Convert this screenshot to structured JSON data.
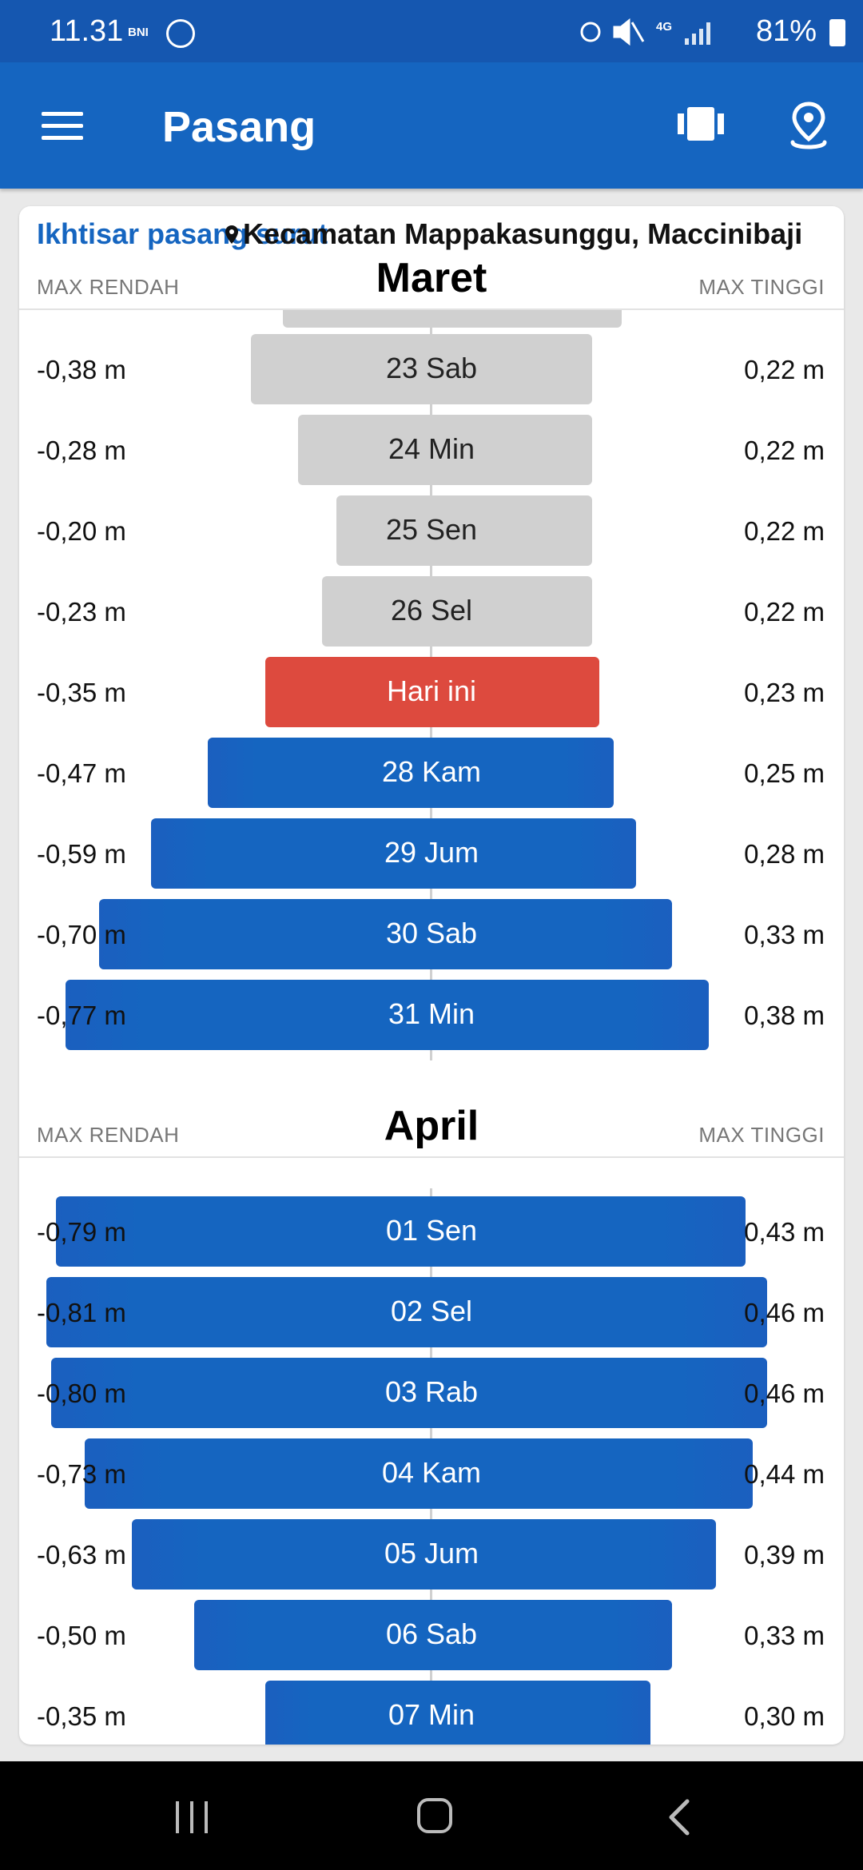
{
  "status_bar": {
    "time": "11.31",
    "carrier_badge": "BNI",
    "network": "4G",
    "battery": "81%"
  },
  "app_bar": {
    "title": "Pasang",
    "menu_icon": "menu-icon",
    "calendar_icon": "calendar-range-icon",
    "location_icon": "location-pin-icon"
  },
  "card": {
    "title": "Ikhtisar pasang surut",
    "location": "Kecamatan Mappakasunggu, Maccinibaji"
  },
  "months": [
    {
      "name": "Maret",
      "left_header": "MAX RENDAH",
      "right_header": "MAX TINGGI",
      "rows": [
        {
          "day": "23 Sab",
          "low": "-0,38 m",
          "high": "0,22 m",
          "low_value": -0.38,
          "high_value": 0.22,
          "state": "past"
        },
        {
          "day": "24 Min",
          "low": "-0,28 m",
          "high": "0,22 m",
          "low_value": -0.28,
          "high_value": 0.22,
          "state": "past"
        },
        {
          "day": "25 Sen",
          "low": "-0,20 m",
          "high": "0,22 m",
          "low_value": -0.2,
          "high_value": 0.22,
          "state": "past"
        },
        {
          "day": "26 Sel",
          "low": "-0,23 m",
          "high": "0,22 m",
          "low_value": -0.23,
          "high_value": 0.22,
          "state": "past"
        },
        {
          "day": "Hari ini",
          "low": "-0,35 m",
          "high": "0,23 m",
          "low_value": -0.35,
          "high_value": 0.23,
          "state": "today"
        },
        {
          "day": "28 Kam",
          "low": "-0,47 m",
          "high": "0,25 m",
          "low_value": -0.47,
          "high_value": 0.25,
          "state": "future"
        },
        {
          "day": "29 Jum",
          "low": "-0,59 m",
          "high": "0,28 m",
          "low_value": -0.59,
          "high_value": 0.28,
          "state": "future"
        },
        {
          "day": "30 Sab",
          "low": "-0,70 m",
          "high": "0,33 m",
          "low_value": -0.7,
          "high_value": 0.33,
          "state": "future"
        },
        {
          "day": "31 Min",
          "low": "-0,77 m",
          "high": "0,38 m",
          "low_value": -0.77,
          "high_value": 0.38,
          "state": "future"
        }
      ]
    },
    {
      "name": "April",
      "left_header": "MAX RENDAH",
      "right_header": "MAX TINGGI",
      "rows": [
        {
          "day": "01 Sen",
          "low": "-0,79 m",
          "high": "0,43 m",
          "low_value": -0.79,
          "high_value": 0.43,
          "state": "future"
        },
        {
          "day": "02 Sel",
          "low": "-0,81 m",
          "high": "0,46 m",
          "low_value": -0.81,
          "high_value": 0.46,
          "state": "future"
        },
        {
          "day": "03 Rab",
          "low": "-0,80 m",
          "high": "0,46 m",
          "low_value": -0.8,
          "high_value": 0.46,
          "state": "future"
        },
        {
          "day": "04 Kam",
          "low": "-0,73 m",
          "high": "0,44 m",
          "low_value": -0.73,
          "high_value": 0.44,
          "state": "future"
        },
        {
          "day": "05 Jum",
          "low": "-0,63 m",
          "high": "0,39 m",
          "low_value": -0.63,
          "high_value": 0.39,
          "state": "future"
        },
        {
          "day": "06 Sab",
          "low": "-0,50 m",
          "high": "0,33 m",
          "low_value": -0.5,
          "high_value": 0.33,
          "state": "future"
        },
        {
          "day": "07 Min",
          "low": "-0,35 m",
          "high": "0,30 m",
          "low_value": -0.35,
          "high_value": 0.3,
          "state": "future"
        }
      ]
    }
  ],
  "colors": {
    "primary": "#1565c0",
    "status_bar": "#1557b0",
    "today": "#dd4a3e",
    "past": "#d0d0d0"
  },
  "navigation": {
    "recent_icon": "recent-apps-icon",
    "home_icon": "home-icon",
    "back_icon": "back-icon"
  }
}
